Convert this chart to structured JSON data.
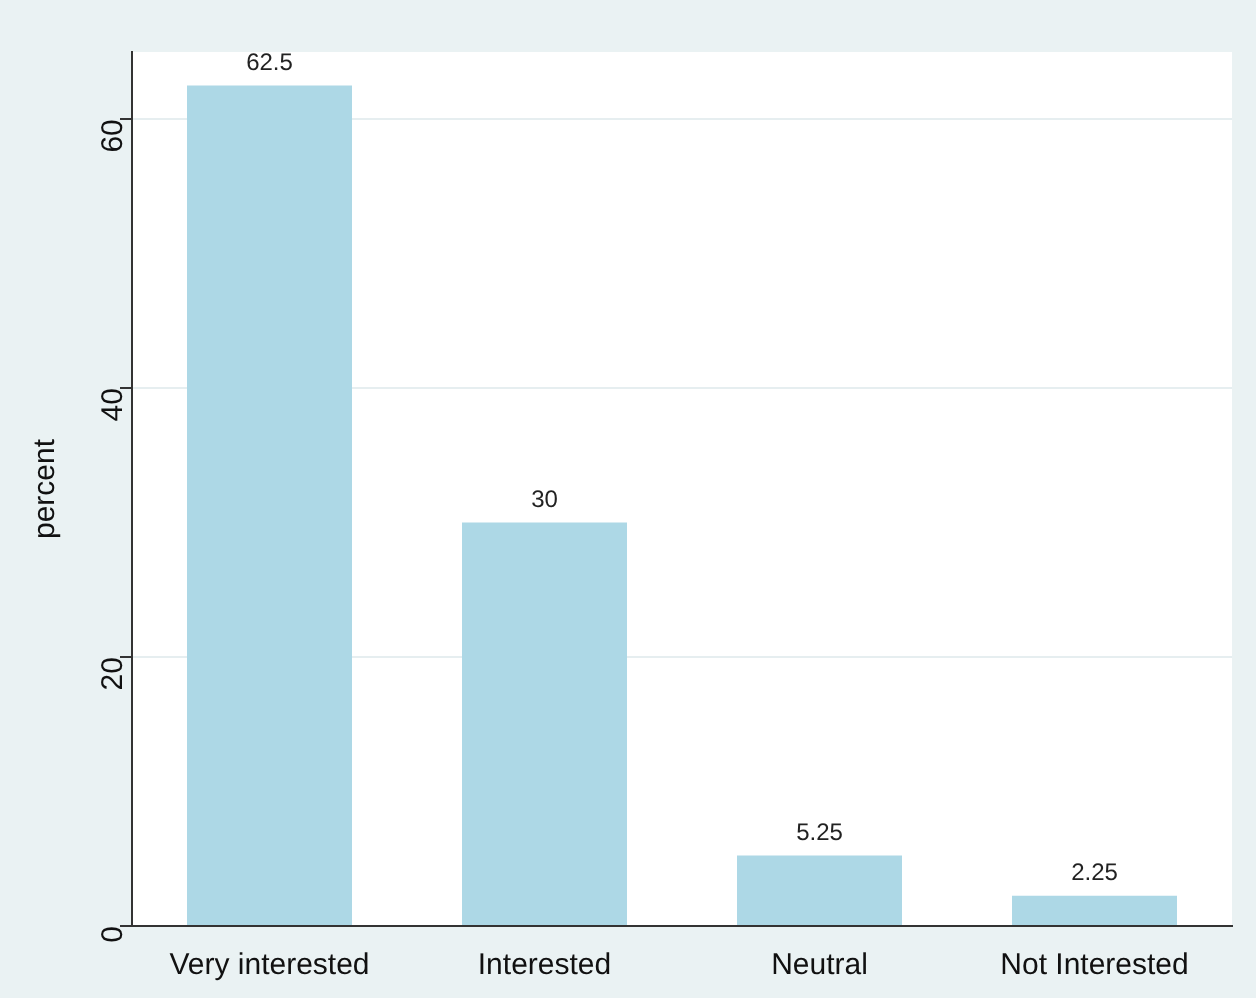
{
  "chart_data": {
    "type": "bar",
    "ylabel": "percent",
    "categories": [
      "Very interested",
      "Interested",
      "Neutral",
      "Not Interested"
    ],
    "values": [
      62.5,
      30,
      5.25,
      2.25
    ],
    "color": "#add8e6",
    "ylim": [
      0,
      65
    ],
    "yticks": [
      0,
      20,
      40,
      60
    ],
    "grid": "y",
    "data_labels": true
  }
}
